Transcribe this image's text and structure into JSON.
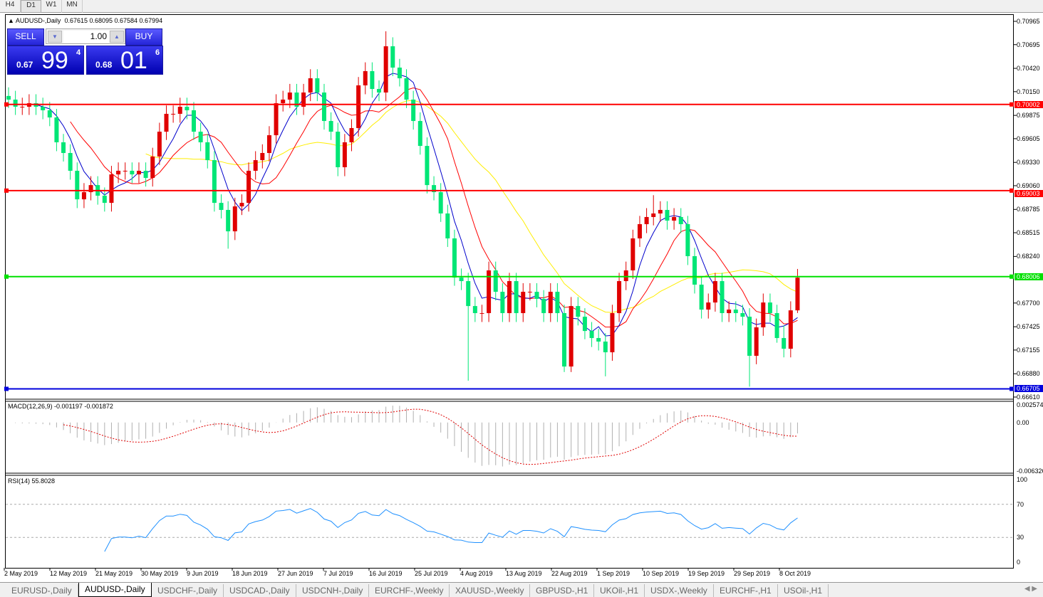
{
  "timeframes": [
    "H4",
    "D1",
    "W1",
    "MN"
  ],
  "active_timeframe": "D1",
  "chart_header": {
    "symbol": "AUDUSD-,Daily",
    "ohlc": "0.67615 0.68095 0.67584 0.67994"
  },
  "trade_panel": {
    "sell_label": "SELL",
    "buy_label": "BUY",
    "lot": "1.00",
    "sell_price": {
      "small": "0.67",
      "large": "99",
      "sup": "4"
    },
    "buy_price": {
      "small": "0.68",
      "large": "01",
      "sup": "6"
    }
  },
  "price_axis": {
    "ticks": [
      "0.70965",
      "0.70695",
      "0.70420",
      "0.70150",
      "0.69875",
      "0.69605",
      "0.69330",
      "0.69060",
      "0.68785",
      "0.68515",
      "0.68240",
      "0.67700",
      "0.67425",
      "0.67155",
      "0.66880",
      "0.66610"
    ],
    "range": [
      0.6661,
      0.70965
    ]
  },
  "levels": [
    {
      "price": "0.70002",
      "color": "#ff0000"
    },
    {
      "price": "0.69003",
      "color": "#ff0000"
    },
    {
      "price": "0.68006",
      "color": "#00e000"
    },
    {
      "price": "0.66705",
      "color": "#0000dd"
    }
  ],
  "colors": {
    "bull": "#e00000",
    "bear": "#00e676",
    "ma_fast": "#0000cc",
    "ma_mid": "#ff0000",
    "ma_slow": "#ffee00",
    "macd_hist": "#b0b0b0",
    "macd_signal": "#e00000",
    "rsi": "#1e90ff"
  },
  "chart_data": {
    "type": "candlestick",
    "first_open": 0.701,
    "close": [
      0.70058,
      0.69975,
      0.69975,
      0.70016,
      0.69975,
      0.69934,
      0.69851,
      0.69563,
      0.69439,
      0.69233,
      0.68902,
      0.68985,
      0.69067,
      0.68944,
      0.68861,
      0.69191,
      0.69233,
      0.69233,
      0.69191,
      0.69233,
      0.6915,
      0.69398,
      0.69686,
      0.69893,
      0.69893,
      0.69975,
      0.69934,
      0.69686,
      0.69563,
      0.69356,
      0.68861,
      0.68779,
      0.68531,
      0.6882,
      0.68861,
      0.69233,
      0.69356,
      0.69439,
      0.69645,
      0.70016,
      0.70058,
      0.7014,
      0.69975,
      0.7014,
      0.70305,
      0.7014,
      0.6981,
      0.69686,
      0.69274,
      0.69563,
      0.69728,
      0.70223,
      0.70388,
      0.70181,
      0.7014,
      0.70676,
      0.70429,
      0.70305,
      0.70058,
      0.6981,
      0.69521,
      0.69067,
      0.68985,
      0.68738,
      0.68449,
      0.67995,
      0.67954,
      0.67665,
      0.67583,
      0.67583,
      0.68078,
      0.6783,
      0.67583,
      0.67954,
      0.67583,
      0.6783,
      0.6783,
      0.67748,
      0.67583,
      0.6783,
      0.67583,
      0.66964,
      0.67665,
      0.67541,
      0.67376,
      0.67294,
      0.67253,
      0.67129,
      0.67583,
      0.67954,
      0.68078,
      0.68449,
      0.68614,
      0.68697,
      0.68738,
      0.68779,
      0.68655,
      0.68697,
      0.68614,
      0.68243,
      0.67913,
      0.67624,
      0.67706,
      0.67954,
      0.67583,
      0.67624,
      0.67583,
      0.67541,
      0.67088,
      0.67418,
      0.67706,
      0.67583,
      0.67294,
      0.6717,
      0.67615,
      0.67994
    ],
    "high": [
      0.702,
      0.7016,
      0.7008,
      0.7012,
      0.7012,
      0.7008,
      0.7003,
      0.6995,
      0.6966,
      0.6954,
      0.6933,
      0.6909,
      0.6917,
      0.6917,
      0.6904,
      0.6929,
      0.6933,
      0.6933,
      0.6933,
      0.6933,
      0.6933,
      0.695,
      0.6979,
      0.6999,
      0.6999,
      0.7008,
      0.7008,
      0.7003,
      0.6979,
      0.6966,
      0.6946,
      0.6896,
      0.6888,
      0.6892,
      0.6896,
      0.6933,
      0.6946,
      0.6954,
      0.6975,
      0.7012,
      0.7016,
      0.7024,
      0.7024,
      0.7024,
      0.7041,
      0.7041,
      0.7024,
      0.6991,
      0.6979,
      0.6966,
      0.6983,
      0.7032,
      0.7049,
      0.7049,
      0.7028,
      0.7085,
      0.7078,
      0.7053,
      0.7041,
      0.7016,
      0.6991,
      0.6962,
      0.6917,
      0.6909,
      0.6884,
      0.6855,
      0.681,
      0.6805,
      0.6777,
      0.6768,
      0.6818,
      0.6818,
      0.6793,
      0.6805,
      0.6805,
      0.6793,
      0.6793,
      0.6793,
      0.6785,
      0.6793,
      0.6793,
      0.6768,
      0.6777,
      0.6777,
      0.6764,
      0.6748,
      0.674,
      0.6735,
      0.6768,
      0.6805,
      0.6818,
      0.6855,
      0.6871,
      0.688,
      0.6895,
      0.6888,
      0.6888,
      0.688,
      0.688,
      0.6871,
      0.6834,
      0.6801,
      0.6781,
      0.6805,
      0.6805,
      0.6772,
      0.6772,
      0.6768,
      0.6764,
      0.6752,
      0.6781,
      0.6781,
      0.6768,
      0.6744,
      0.6772,
      0.68095
    ],
    "low": [
      0.6996,
      0.6988,
      0.6988,
      0.6988,
      0.6988,
      0.6983,
      0.6975,
      0.6946,
      0.6934,
      0.6913,
      0.688,
      0.688,
      0.6889,
      0.6884,
      0.6876,
      0.6876,
      0.6909,
      0.6913,
      0.6909,
      0.6909,
      0.6905,
      0.6905,
      0.693,
      0.6959,
      0.6979,
      0.6979,
      0.6983,
      0.6959,
      0.6946,
      0.6926,
      0.6876,
      0.6868,
      0.6833,
      0.6843,
      0.6872,
      0.6876,
      0.6913,
      0.6926,
      0.6934,
      0.6955,
      0.6992,
      0.6996,
      0.6988,
      0.6988,
      0.7004,
      0.7004,
      0.6971,
      0.6959,
      0.6917,
      0.6917,
      0.6946,
      0.6963,
      0.7012,
      0.7008,
      0.7004,
      0.7004,
      0.7033,
      0.7021,
      0.6996,
      0.6971,
      0.6942,
      0.6897,
      0.6889,
      0.6864,
      0.6835,
      0.679,
      0.6785,
      0.668,
      0.6748,
      0.6748,
      0.6748,
      0.6773,
      0.6748,
      0.6748,
      0.6748,
      0.6748,
      0.6773,
      0.6765,
      0.6748,
      0.6748,
      0.6748,
      0.669,
      0.669,
      0.6744,
      0.6728,
      0.6719,
      0.6715,
      0.6685,
      0.6703,
      0.6748,
      0.6785,
      0.6798,
      0.6835,
      0.6851,
      0.686,
      0.6864,
      0.6855,
      0.6855,
      0.6851,
      0.6814,
      0.6781,
      0.6752,
      0.6752,
      0.676,
      0.6748,
      0.6748,
      0.6748,
      0.6744,
      0.6673,
      0.6699,
      0.6732,
      0.6748,
      0.6724,
      0.6707,
      0.6707,
      0.67584
    ],
    "x_tick_labels": [
      "2 May 2019",
      "12 May 2019",
      "21 May 2019",
      "30 May 2019",
      "9 Jun 2019",
      "18 Jun 2019",
      "27 Jun 2019",
      "7 Jul 2019",
      "16 Jul 2019",
      "25 Jul 2019",
      "4 Aug 2019",
      "13 Aug 2019",
      "22 Aug 2019",
      "1 Sep 2019",
      "10 Sep 2019",
      "19 Sep 2019",
      "29 Sep 2019",
      "8 Oct 2019"
    ]
  },
  "macd": {
    "label": "MACD(12,26,9) -0.001197 -0.001872",
    "ticks": [
      "0.002574",
      "0.00",
      "-0.006326"
    ],
    "range": [
      -0.006326,
      0.002574
    ]
  },
  "rsi": {
    "label": "RSI(14) 55.8028",
    "ticks": [
      "100",
      "70",
      "30",
      "0"
    ],
    "levels": [
      70,
      30
    ]
  },
  "tabs": [
    "EURUSD-,Daily",
    "AUDUSD-,Daily",
    "USDCHF-,Daily",
    "USDCAD-,Daily",
    "USDCNH-,Daily",
    "EURCHF-,Weekly",
    "XAUUSD-,Weekly",
    "GBPUSD-,H1",
    "UKOil-,H1",
    "USDX-,Weekly",
    "EURCHF-,H1",
    "USOil-,H1"
  ],
  "active_tab": "AUDUSD-,Daily"
}
